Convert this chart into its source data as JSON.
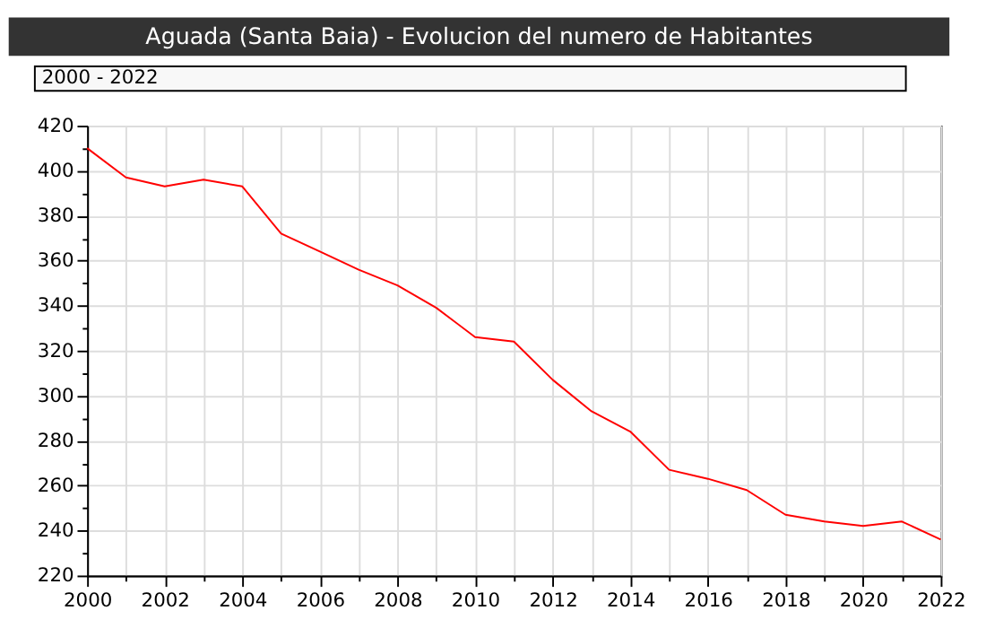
{
  "chart_data": {
    "type": "line",
    "title": "Aguada (Santa Baia) - Evolucion del numero de Habitantes",
    "annotations": [
      "2000 - 2022"
    ],
    "x": [
      2000,
      2001,
      2002,
      2003,
      2004,
      2005,
      2006,
      2007,
      2008,
      2009,
      2010,
      2011,
      2012,
      2013,
      2014,
      2015,
      2016,
      2017,
      2018,
      2019,
      2020,
      2021,
      2022
    ],
    "series": [
      {
        "color": "#ff0000",
        "values": [
          410,
          397,
          393,
          396,
          393,
          372,
          364,
          356,
          349,
          339,
          326,
          324,
          307,
          293,
          284,
          267,
          263,
          258,
          247,
          244,
          242,
          244,
          236
        ]
      }
    ],
    "xlim": [
      2000,
      2022
    ],
    "xticks": [
      2000,
      {
        "value": 2001,
        "label": null
      },
      2002,
      {
        "value": 2003,
        "label": null
      },
      2004,
      {
        "value": 2005,
        "label": null
      },
      2006,
      {
        "value": 2007,
        "label": null
      },
      2008,
      {
        "value": 2009,
        "label": null
      },
      2010,
      {
        "value": 2011,
        "label": null
      },
      2012,
      {
        "value": 2013,
        "label": null
      },
      2014,
      {
        "value": 2015,
        "label": null
      },
      2016,
      {
        "value": 2017,
        "label": null
      },
      2018,
      {
        "value": 2019,
        "label": null
      },
      2020,
      {
        "value": 2021,
        "label": null
      },
      2022
    ],
    "ylim": [
      220,
      420
    ],
    "yticks": [
      220,
      {
        "value": 230,
        "label": null
      },
      240,
      {
        "value": 250,
        "label": null
      },
      260,
      {
        "value": 270,
        "label": null
      },
      280,
      {
        "value": 290,
        "label": null
      },
      300,
      {
        "value": 310,
        "label": null
      },
      320,
      {
        "value": 330,
        "label": null
      },
      340,
      {
        "value": 350,
        "label": null
      },
      360,
      {
        "value": 370,
        "label": null
      },
      380,
      {
        "value": 390,
        "label": null
      },
      400,
      {
        "value": 410,
        "label": null
      },
      420
    ],
    "grid": true,
    "marker": "none",
    "line_style": "solid",
    "legend": false
  }
}
